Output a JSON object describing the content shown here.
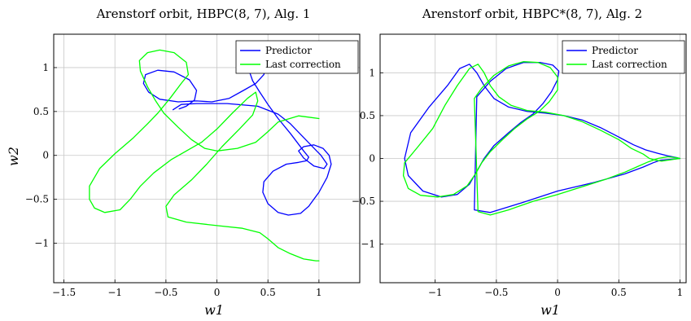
{
  "chart_data": [
    {
      "type": "line",
      "title": "Arenstorf orbit, HBPC(8, 7), Alg. 1",
      "xlabel": "w1",
      "ylabel": "w2",
      "xlim": [
        -1.6,
        1.4
      ],
      "ylim": [
        -1.45,
        1.38
      ],
      "xticks": [
        -1.5,
        -1,
        -0.5,
        0,
        0.5,
        1
      ],
      "xtick_labels": [
        "−1.5",
        "−1",
        "−0.5",
        "0",
        "0.5",
        "1"
      ],
      "yticks": [
        -1,
        -0.5,
        0,
        0.5,
        1
      ],
      "ytick_labels": [
        "−1",
        "−0.5",
        "0",
        "0.5",
        "1"
      ],
      "grid": true,
      "legend_position": "top-right",
      "series": [
        {
          "name": "Predictor",
          "color": "#0000ff",
          "x": [
            -0.43,
            -0.35,
            -0.2,
            0.1,
            0.4,
            0.6,
            0.72,
            0.82,
            0.92,
            1.02,
            1.08,
            1.05,
            0.95,
            0.85,
            0.8,
            0.85,
            0.95,
            1.04,
            1.1,
            1.12,
            1.08,
            1.0,
            0.9,
            0.82,
            0.7,
            0.6,
            0.5,
            0.45,
            0.46,
            0.55,
            0.68,
            0.8,
            0.88,
            0.9,
            0.85,
            0.72,
            0.6,
            0.5,
            0.42,
            0.35,
            0.32,
            0.34,
            0.42,
            0.48,
            0.46,
            0.38,
            0.26,
            0.12,
            -0.05,
            -0.2,
            -0.38,
            -0.56,
            -0.67,
            -0.72,
            -0.7,
            -0.58,
            -0.42,
            -0.27,
            -0.2,
            -0.22,
            -0.3,
            -0.37
          ],
          "y": [
            0.52,
            0.58,
            0.59,
            0.59,
            0.56,
            0.47,
            0.36,
            0.24,
            0.12,
            0.0,
            -0.1,
            -0.15,
            -0.12,
            -0.03,
            0.05,
            0.1,
            0.12,
            0.08,
            0.0,
            -0.1,
            -0.25,
            -0.42,
            -0.58,
            -0.66,
            -0.68,
            -0.65,
            -0.55,
            -0.42,
            -0.3,
            -0.18,
            -0.1,
            -0.08,
            -0.06,
            -0.02,
            0.05,
            0.25,
            0.42,
            0.58,
            0.72,
            0.85,
            0.95,
            1.02,
            1.05,
            1.02,
            0.92,
            0.82,
            0.74,
            0.65,
            0.61,
            0.62,
            0.61,
            0.64,
            0.72,
            0.82,
            0.92,
            0.97,
            0.95,
            0.86,
            0.74,
            0.63,
            0.56,
            0.53
          ]
        },
        {
          "name": "Last correction",
          "color": "#00ff00",
          "x": [
            1.0,
            0.8,
            0.6,
            0.5,
            0.38,
            0.2,
            0.0,
            -0.12,
            -0.25,
            -0.38,
            -0.52,
            -0.6,
            -0.68,
            -0.75,
            -0.76,
            -0.68,
            -0.56,
            -0.42,
            -0.3,
            -0.28,
            -0.35,
            -0.46,
            -0.58,
            -0.68,
            -0.82,
            -1.0,
            -1.15,
            -1.25,
            -1.25,
            -1.2,
            -1.1,
            -0.95,
            -0.85,
            -0.75,
            -0.62,
            -0.45,
            -0.3,
            -0.15,
            0.0,
            0.15,
            0.3,
            0.38,
            0.4,
            0.35,
            0.22,
            0.05,
            -0.1,
            -0.25,
            -0.42,
            -0.5,
            -0.48,
            -0.3,
            0.0,
            0.25,
            0.42,
            0.5,
            0.6,
            0.72,
            0.85,
            0.97,
            1.0
          ],
          "y": [
            0.42,
            0.45,
            0.38,
            0.27,
            0.15,
            0.08,
            0.05,
            0.08,
            0.18,
            0.32,
            0.48,
            0.62,
            0.78,
            0.96,
            1.08,
            1.17,
            1.2,
            1.17,
            1.06,
            0.92,
            0.82,
            0.65,
            0.48,
            0.36,
            0.2,
            0.02,
            -0.15,
            -0.35,
            -0.5,
            -0.6,
            -0.65,
            -0.62,
            -0.5,
            -0.35,
            -0.2,
            -0.05,
            0.05,
            0.15,
            0.3,
            0.48,
            0.65,
            0.72,
            0.62,
            0.46,
            0.3,
            0.1,
            -0.1,
            -0.28,
            -0.45,
            -0.58,
            -0.7,
            -0.76,
            -0.8,
            -0.83,
            -0.88,
            -0.95,
            -1.05,
            -1.12,
            -1.18,
            -1.2,
            -1.2
          ]
        }
      ]
    },
    {
      "type": "line",
      "title": "Arenstorf orbit, HBPC*(8, 7), Alg. 2",
      "xlabel": "w1",
      "ylabel": "",
      "xlim": [
        -1.45,
        1.05
      ],
      "ylim": [
        -1.45,
        1.45
      ],
      "xticks": [
        -1,
        -0.5,
        0,
        0.5,
        1
      ],
      "xtick_labels": [
        "−1",
        "−0.5",
        "0",
        "0.5",
        "1"
      ],
      "yticks": [
        -1,
        -0.5,
        0,
        0.5,
        1
      ],
      "ytick_labels": [
        "−1",
        "−0.5",
        "0",
        "0.5",
        "1"
      ],
      "grid": true,
      "legend_position": "top-right",
      "series": [
        {
          "name": "Predictor",
          "color": "#0000ff",
          "x": [
            1.0,
            0.97,
            0.9,
            0.82,
            0.72,
            0.62,
            0.5,
            0.35,
            0.2,
            0.05,
            -0.1,
            -0.25,
            -0.4,
            -0.52,
            -0.6,
            -0.66,
            -0.72,
            -0.8,
            -0.9,
            -1.05,
            -1.2,
            -1.25,
            -1.22,
            -1.1,
            -0.95,
            -0.82,
            -0.72,
            -0.66,
            -0.6,
            -0.52,
            -0.4,
            -0.3,
            -0.2,
            -0.12,
            -0.05,
            0.0,
            0.01,
            -0.04,
            -0.14,
            -0.28,
            -0.42,
            -0.55,
            -0.66,
            -0.68,
            -0.55,
            -0.3,
            0.0,
            0.3,
            0.55,
            0.7,
            0.78,
            0.84,
            0.92,
            1.0
          ],
          "y": [
            0.0,
            0.01,
            0.03,
            0.06,
            0.1,
            0.16,
            0.25,
            0.36,
            0.45,
            0.5,
            0.53,
            0.55,
            0.6,
            0.7,
            0.85,
            1.0,
            1.1,
            1.05,
            0.85,
            0.6,
            0.3,
            0.0,
            -0.2,
            -0.38,
            -0.45,
            -0.42,
            -0.3,
            -0.15,
            0.0,
            0.15,
            0.3,
            0.42,
            0.52,
            0.64,
            0.78,
            0.92,
            1.02,
            1.09,
            1.12,
            1.12,
            1.05,
            0.9,
            0.72,
            -0.6,
            -0.63,
            -0.52,
            -0.38,
            -0.28,
            -0.18,
            -0.1,
            -0.05,
            -0.02,
            -0.01,
            0.0
          ]
        },
        {
          "name": "Last correction",
          "color": "#00ff00",
          "x": [
            1.0,
            0.9,
            0.85,
            0.8,
            0.75,
            0.7,
            0.6,
            0.5,
            0.35,
            0.2,
            0.05,
            -0.1,
            -0.25,
            -0.38,
            -0.48,
            -0.55,
            -0.6,
            -0.65,
            -0.72,
            -0.82,
            -0.92,
            -1.02,
            -1.15,
            -1.25,
            -1.26,
            -1.22,
            -1.12,
            -0.98,
            -0.85,
            -0.74,
            -0.67,
            -0.62,
            -0.55,
            -0.45,
            -0.35,
            -0.25,
            -0.15,
            -0.07,
            0.0,
            0.0,
            -0.06,
            -0.16,
            -0.28,
            -0.4,
            -0.52,
            -0.62,
            -0.68,
            -0.65,
            -0.55,
            -0.4,
            -0.2,
            0.0,
            0.2,
            0.4,
            0.55,
            0.66,
            0.74,
            0.82,
            0.9,
            0.96,
            1.0
          ],
          "y": [
            0.0,
            -0.02,
            -0.03,
            -0.02,
            0.0,
            0.05,
            0.12,
            0.22,
            0.33,
            0.43,
            0.5,
            0.54,
            0.56,
            0.62,
            0.72,
            0.85,
            1.0,
            1.1,
            1.05,
            0.85,
            0.62,
            0.35,
            0.12,
            -0.05,
            -0.2,
            -0.35,
            -0.43,
            -0.45,
            -0.42,
            -0.32,
            -0.18,
            -0.05,
            0.08,
            0.22,
            0.35,
            0.46,
            0.55,
            0.66,
            0.8,
            0.95,
            1.06,
            1.12,
            1.13,
            1.08,
            0.97,
            0.82,
            0.7,
            -0.62,
            -0.66,
            -0.6,
            -0.5,
            -0.42,
            -0.33,
            -0.24,
            -0.16,
            -0.09,
            -0.04,
            0.0,
            0.02,
            0.01,
            0.0
          ]
        }
      ]
    }
  ]
}
